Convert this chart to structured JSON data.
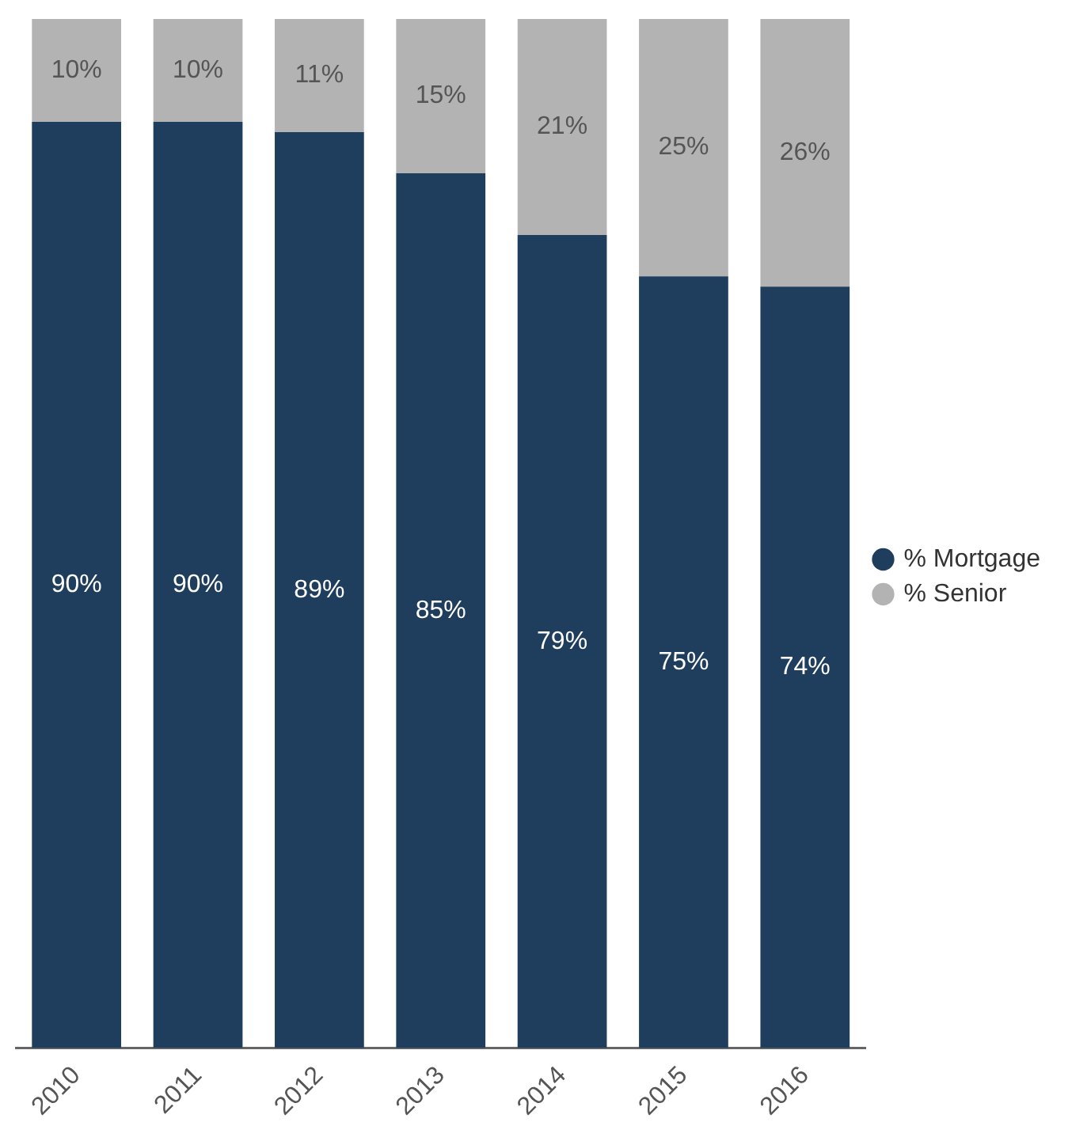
{
  "chart_data": {
    "type": "bar",
    "stacked": true,
    "categories": [
      "2010",
      "2011",
      "2012",
      "2013",
      "2014",
      "2015",
      "2016"
    ],
    "series": [
      {
        "name": "% Mortgage",
        "color": "#1f3d5c",
        "values": [
          90,
          90,
          89,
          85,
          79,
          75,
          74
        ],
        "value_labels": [
          "90%",
          "90%",
          "89%",
          "85%",
          "79%",
          "75%",
          "74%"
        ]
      },
      {
        "name": "% Senior",
        "color": "#b3b3b3",
        "values": [
          10,
          10,
          11,
          15,
          21,
          25,
          26
        ],
        "value_labels": [
          "10%",
          "10%",
          "11%",
          "15%",
          "21%",
          "25%",
          "26%"
        ]
      }
    ],
    "legend": "right",
    "grid": false
  }
}
